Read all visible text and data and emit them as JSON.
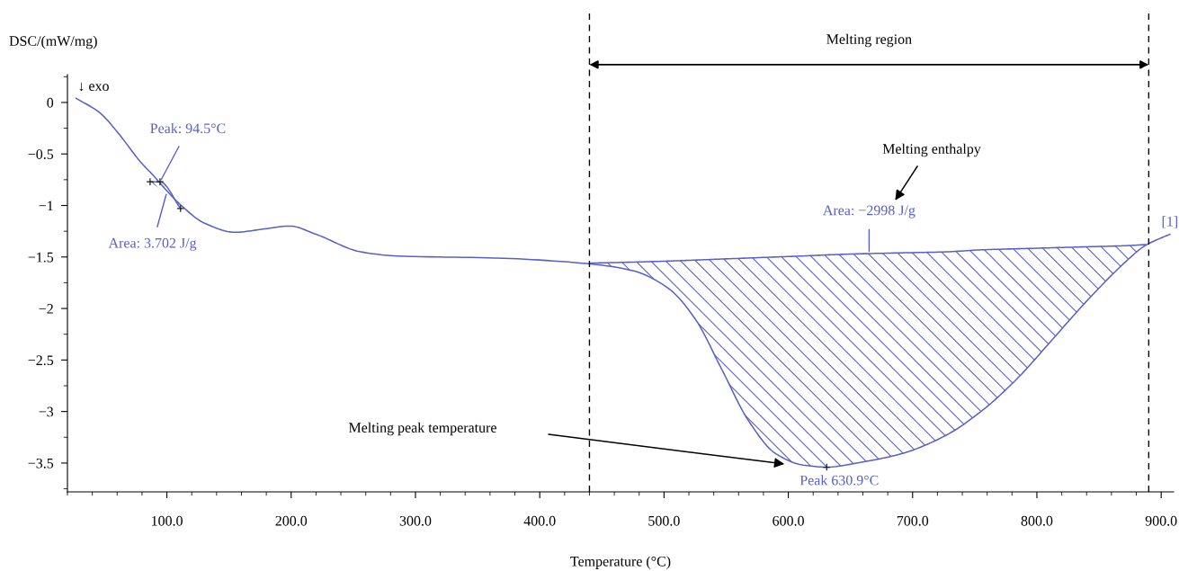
{
  "chart_data": {
    "type": "line",
    "xlabel": "Temperature (°C)",
    "ylabel": "DSC/(mW/mg)",
    "xlim": [
      20,
      910
    ],
    "ylim": [
      -3.78,
      0.27
    ],
    "xticks": [
      {
        "value": 100,
        "label": "100.0"
      },
      {
        "value": 200,
        "label": "200.0"
      },
      {
        "value": 300,
        "label": "300.0"
      },
      {
        "value": 400,
        "label": "400.0"
      },
      {
        "value": 500,
        "label": "500.0"
      },
      {
        "value": 600,
        "label": "600.0"
      },
      {
        "value": 700,
        "label": "700.0"
      },
      {
        "value": 800,
        "label": "800.0"
      },
      {
        "value": 900,
        "label": "900.0"
      }
    ],
    "yticks": [
      0,
      {
        "value": -0.5,
        "label": "−0.5"
      },
      {
        "value": -1,
        "label": "−1"
      },
      {
        "value": -1.5,
        "label": "−1.5"
      },
      {
        "value": -2,
        "label": "−2"
      },
      {
        "value": -2.5,
        "label": "−2.5"
      },
      {
        "value": -3,
        "label": "−3"
      },
      {
        "value": -3.5,
        "label": "−3.5"
      }
    ],
    "grid": false,
    "series": [
      {
        "name": "[1]",
        "color": "#5a5fc8",
        "line_style": "solid",
        "x": [
          27,
          46,
          61,
          79,
          90,
          95.7,
          111.6,
          130,
          155,
          177,
          199,
          220,
          256,
          285,
          365,
          434,
          474,
          503,
          525,
          546,
          568,
          590,
          612,
          630.9,
          655,
          691,
          727,
          756,
          785,
          814,
          843,
          872,
          887,
          901,
          907
        ],
        "values": [
          0.04,
          -0.1,
          -0.3,
          -0.58,
          -0.72,
          -0.8,
          -1.0,
          -1.17,
          -1.26,
          -1.23,
          -1.2,
          -1.28,
          -1.45,
          -1.49,
          -1.51,
          -1.56,
          -1.63,
          -1.8,
          -2.1,
          -2.58,
          -3.09,
          -3.41,
          -3.52,
          -3.54,
          -3.5,
          -3.41,
          -3.23,
          -2.99,
          -2.67,
          -2.28,
          -1.89,
          -1.54,
          -1.39,
          -1.31,
          -1.28
        ]
      },
      {
        "color": "#5a5fc8",
        "line_style": "solid",
        "x": [
          86.5,
          94.5,
          111
        ],
        "values": [
          -0.77,
          -0.77,
          -1.03
        ],
        "lower": [
          -0.77,
          -0.84,
          -1.03
        ],
        "upper": [
          -0.77,
          -0.77,
          -1.03
        ]
      },
      {
        "color": "#5a5fc8",
        "line_style": "solid",
        "x": [
          440,
          474,
          503,
          525,
          546,
          568,
          590,
          612,
          630.9,
          655,
          691,
          727,
          756,
          785,
          814,
          843,
          872,
          887
        ],
        "values": [
          -1.56,
          -1.55,
          -1.54,
          -1.53,
          -1.52,
          -1.51,
          -1.5,
          -1.49,
          -1.48,
          -1.47,
          -1.46,
          -1.45,
          -1.43,
          -1.42,
          -1.41,
          -1.4,
          -1.39,
          -1.38
        ],
        "lower": [
          -1.56,
          -1.63,
          -1.8,
          -2.1,
          -2.58,
          -3.09,
          -3.41,
          -3.52,
          -3.54,
          -3.5,
          -3.41,
          -3.23,
          -2.99,
          -2.67,
          -2.28,
          -1.89,
          -1.54,
          -1.39
        ],
        "upper": [
          -1.56,
          -1.55,
          -1.54,
          -1.53,
          -1.52,
          -1.51,
          -1.5,
          -1.49,
          -1.48,
          -1.47,
          -1.46,
          -1.45,
          -1.43,
          -1.42,
          -1.41,
          -1.4,
          -1.39,
          -1.38
        ]
      },
      {
        "color": "#222222",
        "type": "scatter",
        "marker": "cross",
        "x": [
          86.5,
          94.5,
          111,
          630.9
        ],
        "values": [
          -0.77,
          -0.77,
          -1.03,
          -3.54
        ]
      }
    ],
    "ref_lines": [
      {
        "axis": "x",
        "value": 440,
        "color": "#000000",
        "line_style": "dashed"
      },
      {
        "axis": "x",
        "value": 890,
        "color": "#000000",
        "line_style": "dashed"
      }
    ],
    "annotations": [
      "Melting region",
      {
        "text": "Peak: 94.5°C",
        "x": 94.5,
        "y": -0.77
      },
      {
        "text": "Area: 3.702 J/g",
        "x": 100,
        "y": -0.87
      },
      "Melting enthalpy",
      {
        "text": "Area: −2998 J/g",
        "x": 665,
        "y": -1.47
      },
      "Melting peak temperature",
      {
        "text": "Peak 630.9°C",
        "x": 630.9,
        "y": -3.54
      },
      "↓ exo"
    ]
  }
}
